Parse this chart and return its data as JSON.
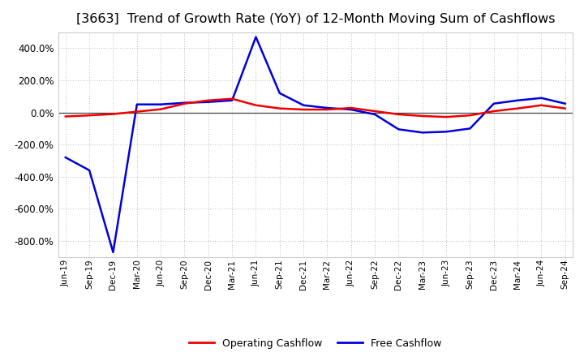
{
  "title": "[3663]  Trend of Growth Rate (YoY) of 12-Month Moving Sum of Cashflows",
  "title_fontsize": 11.5,
  "background_color": "#ffffff",
  "plot_bg_color": "#ffffff",
  "grid_color": "#bbbbbb",
  "operating_color": "#ee0000",
  "free_color": "#0000dd",
  "x_labels": [
    "Jun-19",
    "Sep-19",
    "Dec-19",
    "Mar-20",
    "Jun-20",
    "Sep-20",
    "Dec-20",
    "Mar-21",
    "Jun-21",
    "Sep-21",
    "Dec-21",
    "Mar-22",
    "Jun-22",
    "Sep-22",
    "Dec-22",
    "Mar-23",
    "Jun-23",
    "Sep-23",
    "Dec-23",
    "Mar-24",
    "Jun-24",
    "Sep-24"
  ],
  "operating_cashflow": [
    -25,
    -18,
    -10,
    5,
    20,
    55,
    75,
    85,
    45,
    25,
    18,
    18,
    28,
    8,
    -12,
    -22,
    -28,
    -18,
    8,
    25,
    45,
    25
  ],
  "free_cashflow": [
    -280,
    -360,
    -870,
    50,
    50,
    60,
    65,
    75,
    470,
    120,
    45,
    28,
    18,
    -12,
    -105,
    -125,
    -120,
    -100,
    55,
    75,
    90,
    55
  ],
  "ylim": [
    -900,
    500
  ],
  "yticks": [
    -800,
    -600,
    -400,
    -200,
    0,
    200,
    400
  ],
  "legend_labels": [
    "Operating Cashflow",
    "Free Cashflow"
  ]
}
